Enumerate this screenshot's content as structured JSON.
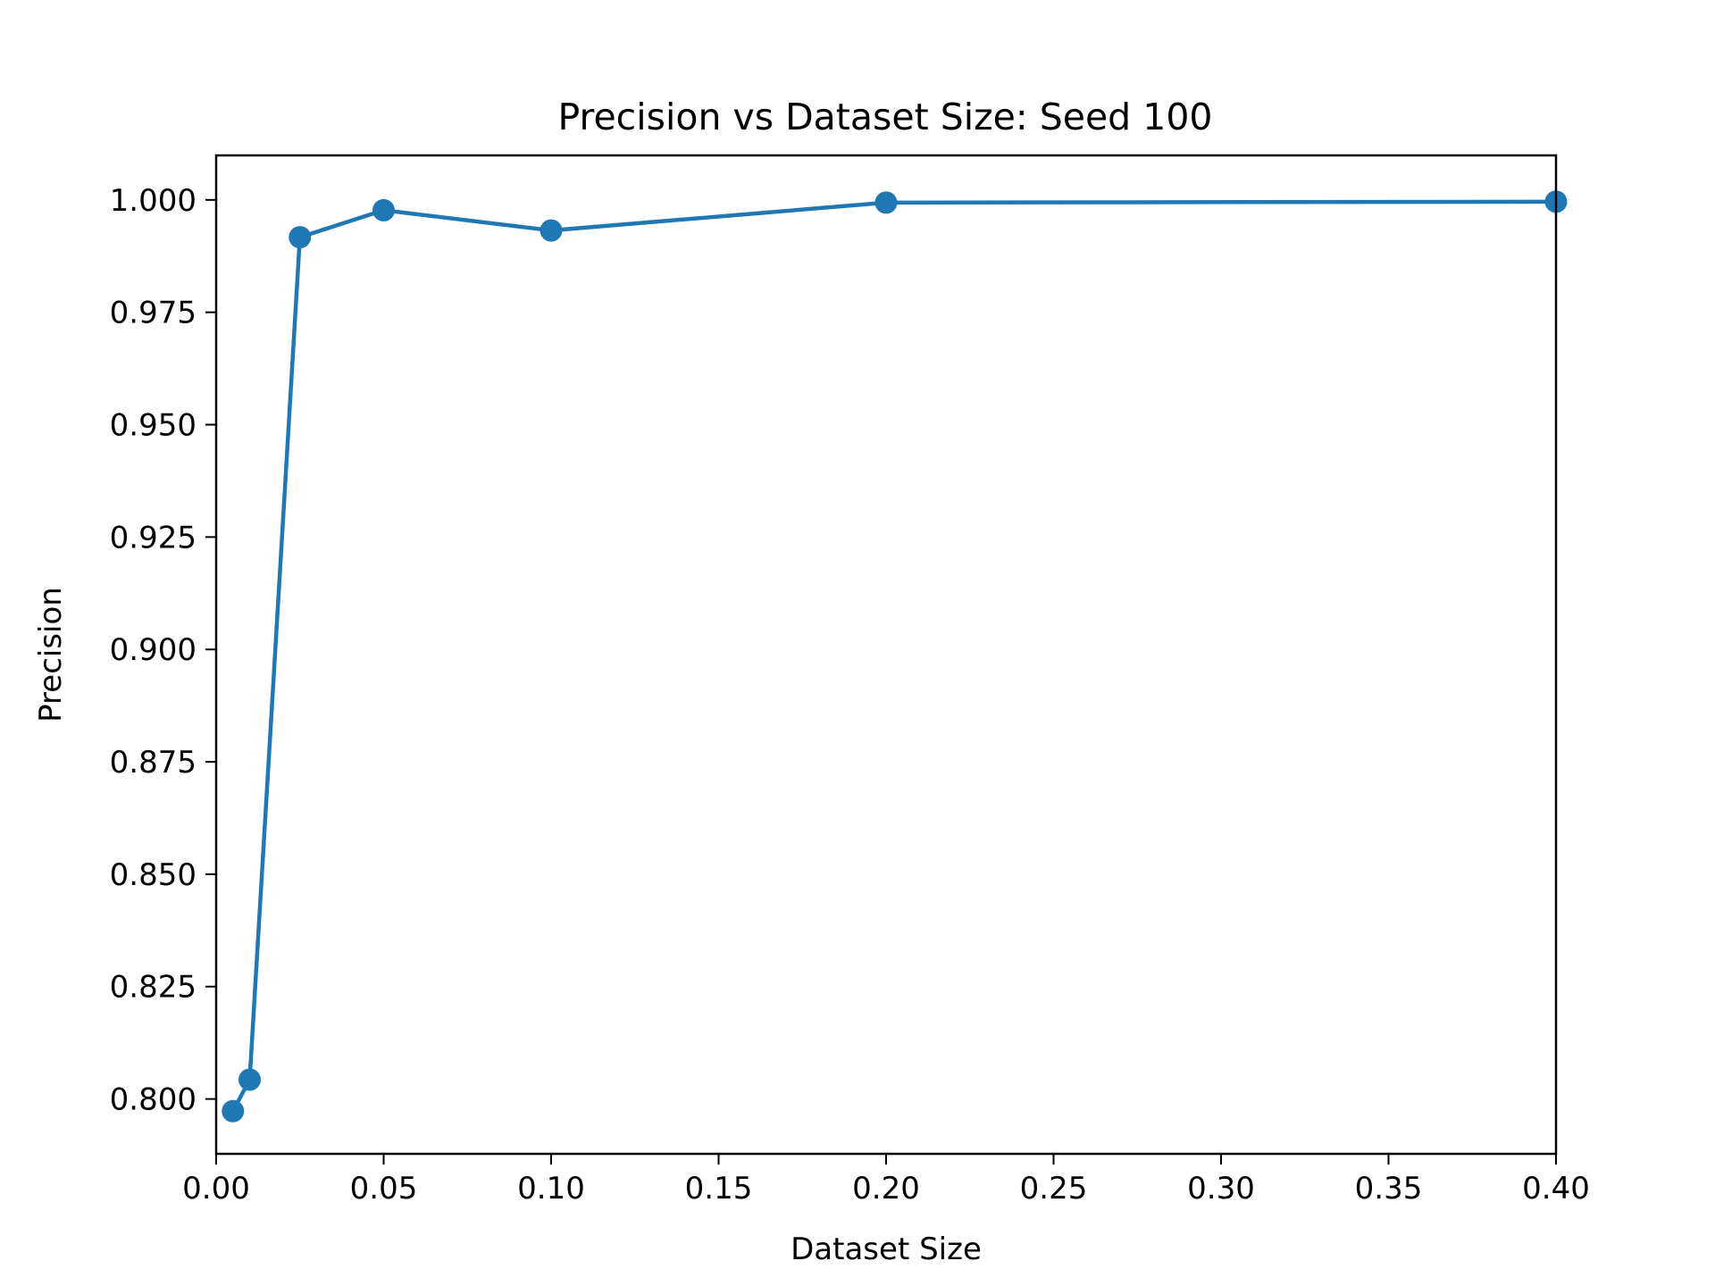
{
  "chart_data": {
    "type": "line",
    "title": "Precision vs Dataset Size: Seed 100",
    "xlabel": "Dataset Size",
    "ylabel": "Precision",
    "xlim": [
      0.0,
      0.4
    ],
    "ylim": [
      0.7878,
      1.0099
    ],
    "xticks": [
      0.0,
      0.05,
      0.1,
      0.15,
      0.2,
      0.25,
      0.3,
      0.35,
      0.4
    ],
    "xtick_labels": [
      "0.00",
      "0.05",
      "0.10",
      "0.15",
      "0.20",
      "0.25",
      "0.30",
      "0.35",
      "0.40"
    ],
    "yticks": [
      0.8,
      0.825,
      0.85,
      0.875,
      0.9,
      0.925,
      0.95,
      0.975,
      1.0
    ],
    "ytick_labels": [
      "0.800",
      "0.825",
      "0.850",
      "0.875",
      "0.900",
      "0.925",
      "0.950",
      "0.975",
      "1.000"
    ],
    "grid": false,
    "series": [
      {
        "name": "Precision",
        "color": "#1f77b4",
        "marker": "circle",
        "x": [
          0.005,
          0.01,
          0.025,
          0.05,
          0.1,
          0.2,
          0.4
        ],
        "y": [
          0.7973,
          0.8043,
          0.9917,
          0.9977,
          0.9932,
          0.9994,
          0.9996
        ]
      }
    ]
  }
}
